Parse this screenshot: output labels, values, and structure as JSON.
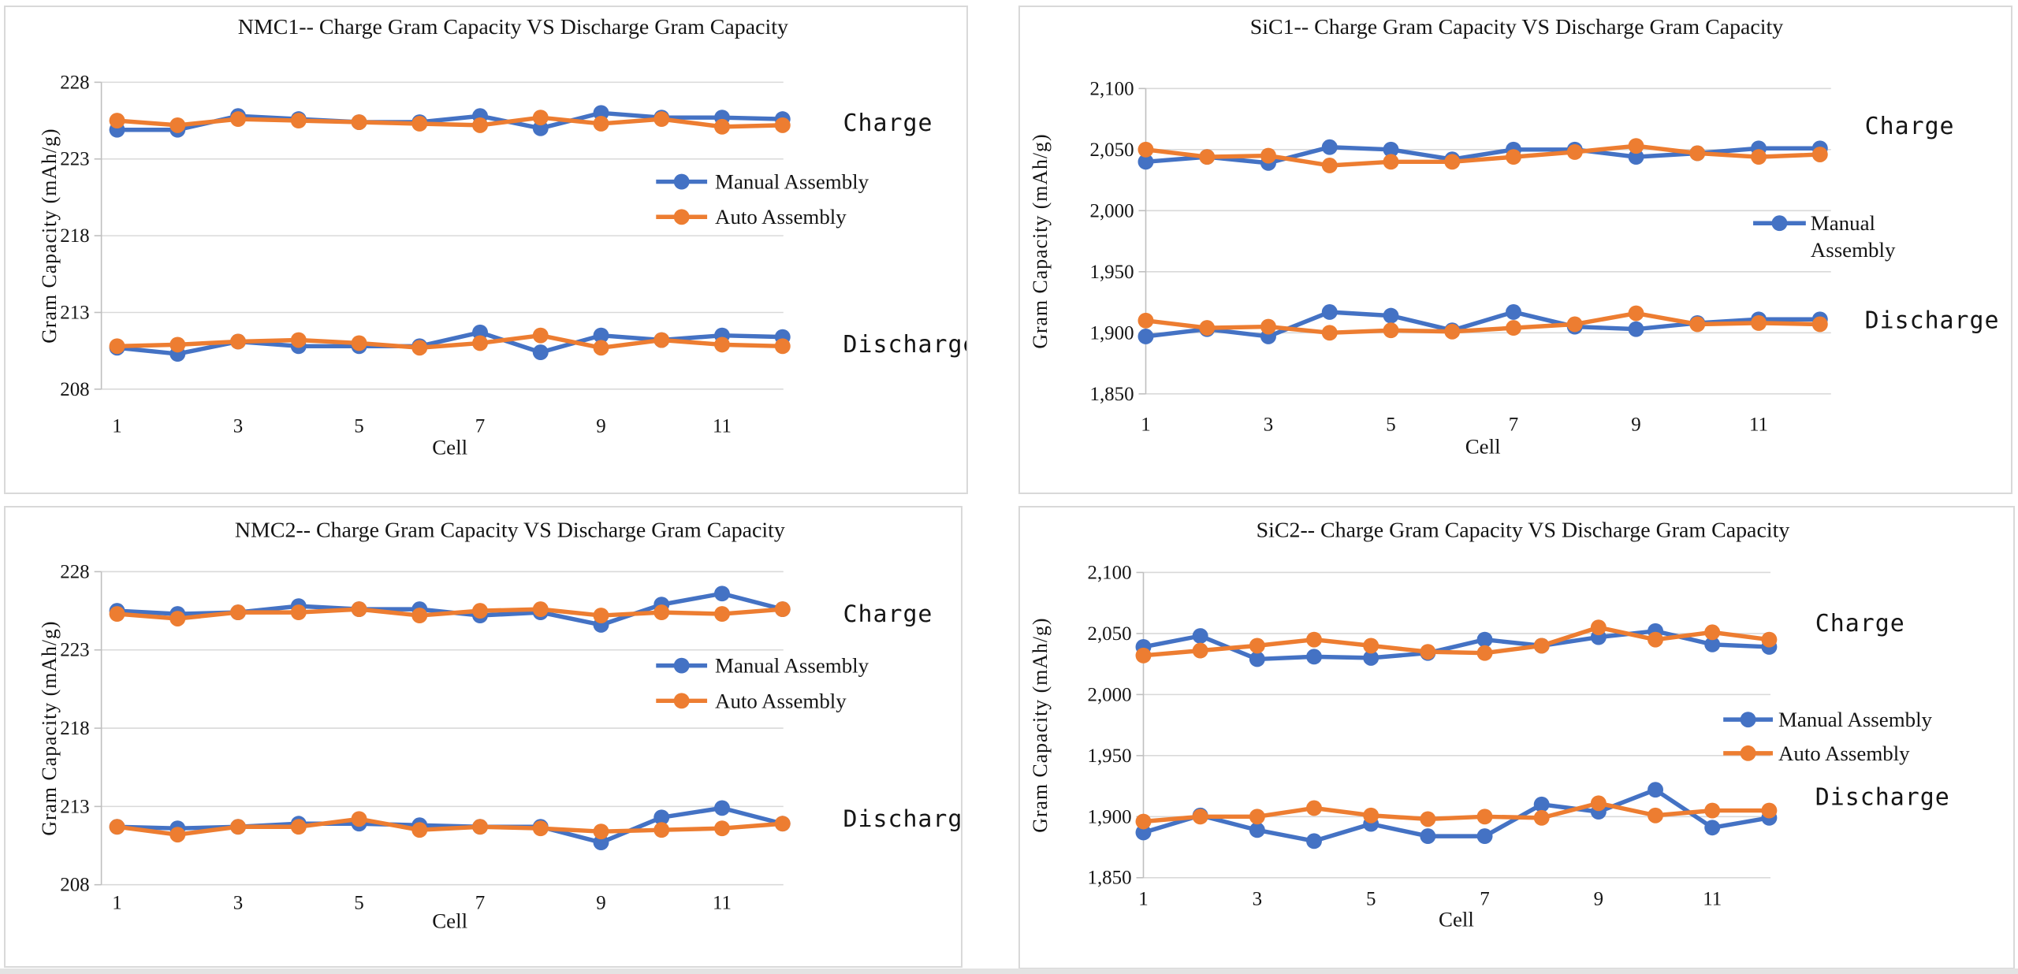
{
  "page": {
    "background": "#ffffff",
    "bottom_strip_color": "#e3e3e3"
  },
  "colors": {
    "manual": "#4472C4",
    "auto": "#ED7D31",
    "grid": "#D9D9D9",
    "axis": "#BFBFBF",
    "text": "#151515"
  },
  "chart_data": [
    {
      "id": "NMC1",
      "type": "line",
      "title": "NMC1-- Charge Gram Capacity VS Discharge Gram Capacity",
      "xlabel": "Cell",
      "ylabel": "Gram Capacity (mAh/g)",
      "ylim": [
        208,
        228
      ],
      "y_ticks": {
        "values": [
          228,
          223,
          218,
          213,
          208
        ],
        "labels": [
          "228",
          "223",
          "218",
          "213",
          "208"
        ]
      },
      "x_ticks": {
        "positions": [
          1,
          3,
          5,
          7,
          9,
          11
        ],
        "labels": [
          "1",
          "3",
          "5",
          "7",
          "9",
          "11"
        ]
      },
      "categories": [
        1,
        2,
        3,
        4,
        5,
        6,
        7,
        8,
        9,
        10,
        11,
        12
      ],
      "grid": true,
      "annotations": [
        {
          "text": "Charge"
        },
        {
          "text": "Discharge"
        }
      ],
      "legend": {
        "entries": [
          {
            "label": "Manual Assembly",
            "color": "manual"
          },
          {
            "label": "Auto Assembly",
            "color": "auto"
          }
        ],
        "position": "center-right",
        "wrap": false
      },
      "series": [
        {
          "name": "Manual Assembly",
          "group": "Charge",
          "color": "manual",
          "values": [
            224.9,
            224.9,
            225.8,
            225.6,
            225.4,
            225.4,
            225.8,
            225.0,
            226.0,
            225.7,
            225.7,
            225.6
          ]
        },
        {
          "name": "Auto Assembly",
          "group": "Charge",
          "color": "auto",
          "values": [
            225.5,
            225.2,
            225.6,
            225.5,
            225.4,
            225.3,
            225.2,
            225.7,
            225.3,
            225.6,
            225.1,
            225.2
          ]
        },
        {
          "name": "Manual Assembly",
          "group": "Discharge",
          "color": "manual",
          "values": [
            210.7,
            210.3,
            211.1,
            210.8,
            210.8,
            210.8,
            211.7,
            210.4,
            211.5,
            211.2,
            211.5,
            211.4
          ]
        },
        {
          "name": "Auto Assembly",
          "group": "Discharge",
          "color": "auto",
          "values": [
            210.8,
            210.9,
            211.1,
            211.2,
            211.0,
            210.7,
            211.0,
            211.5,
            210.7,
            211.2,
            210.9,
            210.8
          ]
        }
      ]
    },
    {
      "id": "SiC1",
      "type": "line",
      "title": "SiC1-- Charge Gram Capacity VS Discharge Gram Capacity",
      "xlabel": "Cell",
      "ylabel": "Gram Capacity (mAh/g)",
      "ylim": [
        1850,
        2100
      ],
      "y_ticks": {
        "values": [
          2100,
          2050,
          2000,
          1950,
          1900,
          1850
        ],
        "labels": [
          "2,100",
          "2,050",
          "2,000",
          "1,950",
          "1,900",
          "1,850"
        ]
      },
      "x_ticks": {
        "positions": [
          1,
          3,
          5,
          7,
          9,
          11
        ],
        "labels": [
          "1",
          "3",
          "5",
          "7",
          "9",
          "11"
        ]
      },
      "categories": [
        1,
        2,
        3,
        4,
        5,
        6,
        7,
        8,
        9,
        10,
        11,
        12
      ],
      "grid": true,
      "annotations": [
        {
          "text": "Charge"
        },
        {
          "text": "Discharge"
        }
      ],
      "legend": {
        "entries": [
          {
            "label": "Manual Assembly",
            "color": "manual"
          }
        ],
        "position": "center-right",
        "wrap": true
      },
      "series": [
        {
          "name": "Manual Assembly",
          "group": "Charge",
          "color": "manual",
          "values": [
            2040,
            2044,
            2039,
            2052,
            2050,
            2042,
            2050,
            2050,
            2044,
            2047,
            2051,
            2051
          ]
        },
        {
          "name": "Auto Assembly",
          "group": "Charge",
          "color": "auto",
          "values": [
            2050,
            2044,
            2045,
            2037,
            2040,
            2040,
            2044,
            2048,
            2053,
            2047,
            2044,
            2046
          ]
        },
        {
          "name": "Manual Assembly",
          "group": "Discharge",
          "color": "manual",
          "values": [
            1897,
            1903,
            1897,
            1917,
            1914,
            1902,
            1917,
            1905,
            1903,
            1908,
            1911,
            1911
          ]
        },
        {
          "name": "Auto Assembly",
          "group": "Discharge",
          "color": "auto",
          "values": [
            1910,
            1904,
            1905,
            1900,
            1902,
            1901,
            1904,
            1907,
            1916,
            1907,
            1908,
            1907
          ]
        }
      ]
    },
    {
      "id": "NMC2",
      "type": "line",
      "title": "NMC2-- Charge Gram Capacity VS Discharge Gram Capacity",
      "xlabel": "Cell",
      "ylabel": "Gram Capacity (mAh/g)",
      "ylim": [
        208,
        228
      ],
      "y_ticks": {
        "values": [
          228,
          223,
          218,
          213,
          208
        ],
        "labels": [
          "228",
          "223",
          "218",
          "213",
          "208"
        ]
      },
      "x_ticks": {
        "positions": [
          1,
          3,
          5,
          7,
          9,
          11
        ],
        "labels": [
          "1",
          "3",
          "5",
          "7",
          "9",
          "11"
        ]
      },
      "categories": [
        1,
        2,
        3,
        4,
        5,
        6,
        7,
        8,
        9,
        10,
        11,
        12
      ],
      "grid": true,
      "annotations": [
        {
          "text": "Charge"
        },
        {
          "text": "Discharge"
        }
      ],
      "legend": {
        "entries": [
          {
            "label": "Manual Assembly",
            "color": "manual"
          },
          {
            "label": "Auto Assembly",
            "color": "auto"
          }
        ],
        "position": "center-right",
        "wrap": false
      },
      "series": [
        {
          "name": "Manual Assembly",
          "group": "Charge",
          "color": "manual",
          "values": [
            225.5,
            225.3,
            225.4,
            225.8,
            225.6,
            225.6,
            225.2,
            225.4,
            224.6,
            225.9,
            226.6,
            225.6
          ]
        },
        {
          "name": "Auto Assembly",
          "group": "Charge",
          "color": "auto",
          "values": [
            225.3,
            225.0,
            225.4,
            225.4,
            225.6,
            225.2,
            225.5,
            225.6,
            225.2,
            225.4,
            225.3,
            225.6
          ]
        },
        {
          "name": "Manual Assembly",
          "group": "Discharge",
          "color": "manual",
          "values": [
            211.7,
            211.6,
            211.7,
            211.9,
            211.9,
            211.8,
            211.7,
            211.7,
            210.7,
            212.3,
            212.9,
            211.9
          ]
        },
        {
          "name": "Auto Assembly",
          "group": "Discharge",
          "color": "auto",
          "values": [
            211.7,
            211.2,
            211.7,
            211.7,
            212.2,
            211.5,
            211.7,
            211.6,
            211.4,
            211.5,
            211.6,
            211.9
          ]
        }
      ]
    },
    {
      "id": "SiC2",
      "type": "line",
      "title": "SiC2-- Charge Gram Capacity VS Discharge Gram Capacity",
      "xlabel": "Cell",
      "ylabel": "Gram Capacity (mAh/g)",
      "ylim": [
        1850,
        2100
      ],
      "y_ticks": {
        "values": [
          2100,
          2050,
          2000,
          1950,
          1900,
          1850
        ],
        "labels": [
          "2,100",
          "2,050",
          "2,000",
          "1,950",
          "1,900",
          "1,850"
        ]
      },
      "x_ticks": {
        "positions": [
          1,
          3,
          5,
          7,
          9,
          11
        ],
        "labels": [
          "1",
          "3",
          "5",
          "7",
          "9",
          "11"
        ]
      },
      "categories": [
        1,
        2,
        3,
        4,
        5,
        6,
        7,
        8,
        9,
        10,
        11,
        12
      ],
      "grid": true,
      "annotations": [
        {
          "text": "Charge"
        },
        {
          "text": "Discharge"
        }
      ],
      "legend": {
        "entries": [
          {
            "label": "Manual Assembly",
            "color": "manual"
          },
          {
            "label": "Auto Assembly",
            "color": "auto"
          }
        ],
        "position": "center-right",
        "wrap": false
      },
      "series": [
        {
          "name": "Manual Assembly",
          "group": "Charge",
          "color": "manual",
          "values": [
            2039,
            2048,
            2029,
            2031,
            2030,
            2034,
            2045,
            2040,
            2047,
            2052,
            2041,
            2039
          ]
        },
        {
          "name": "Auto Assembly",
          "group": "Charge",
          "color": "auto",
          "values": [
            2032,
            2036,
            2040,
            2045,
            2040,
            2035,
            2034,
            2040,
            2055,
            2045,
            2051,
            2045
          ]
        },
        {
          "name": "Manual Assembly",
          "group": "Discharge",
          "color": "manual",
          "values": [
            1887,
            1901,
            1889,
            1880,
            1894,
            1884,
            1884,
            1910,
            1904,
            1922,
            1891,
            1899
          ]
        },
        {
          "name": "Auto Assembly",
          "group": "Discharge",
          "color": "auto",
          "values": [
            1896,
            1900,
            1900,
            1907,
            1901,
            1898,
            1900,
            1899,
            1911,
            1901,
            1905,
            1905
          ]
        }
      ]
    }
  ]
}
